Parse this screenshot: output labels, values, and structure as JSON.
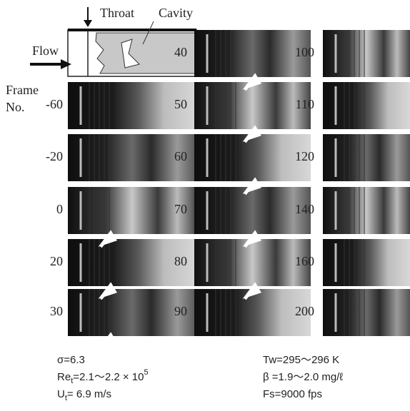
{
  "schematic": {
    "throat_label": "Throat",
    "cavity_label": "Cavity",
    "flow_label": "Flow"
  },
  "frame_label": {
    "line1": "Frame",
    "line2": "No."
  },
  "columns": [
    {
      "frames": [
        "-60",
        "-20",
        "0",
        "20",
        "30"
      ]
    },
    {
      "frames": [
        "40",
        "50",
        "60",
        "70",
        "80",
        "90"
      ]
    },
    {
      "frames": [
        "100",
        "110",
        "120",
        "140",
        "160",
        "200"
      ]
    }
  ],
  "parameters_left": [
    {
      "text": "σ=6.3"
    },
    {
      "base": "Re",
      "sub": "t",
      "text": "=2.1～2.2 × 10",
      "sup": "5"
    },
    {
      "base": "U",
      "sub": "t",
      "text": "= 6.9  m/s"
    }
  ],
  "parameters_right": [
    {
      "text": "Tw=295～296  K"
    },
    {
      "text": "β =1.9～2.0  mg/ℓ"
    },
    {
      "text": "Fs=9000 fps"
    }
  ]
}
